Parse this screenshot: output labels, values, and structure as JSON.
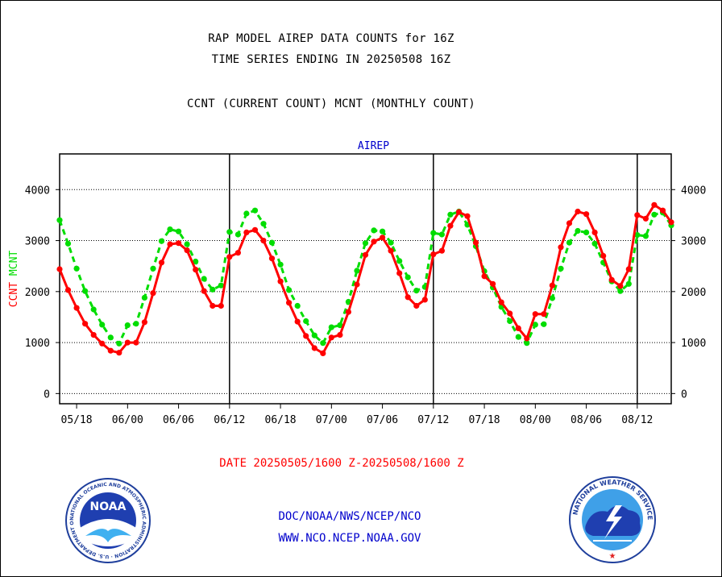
{
  "header": {
    "title_line1": "RAP MODEL AIREP DATA COUNTS for 16Z",
    "title_line2": "TIME SERIES ENDING IN 20250508 16Z",
    "title_line3": "CCNT (CURRENT COUNT) MCNT (MONTHLY COUNT)"
  },
  "footer": {
    "date_range": "DATE 20250505/1600 Z-20250508/1600 Z",
    "org": "DOC/NOAA/NWS/NCEP/NCO",
    "website": "WWW.NCO.NCEP.NOAA.GOV"
  },
  "logos": {
    "left": "NOAA",
    "left_ring": "NATIONAL OCEANIC AND ATMOSPHERIC ADMINISTRATION · U.S. DEPARTMENT OF COMMERCE",
    "right_ring": "NATIONAL WEATHER SERVICE"
  },
  "colors": {
    "ccnt": "#ff0000",
    "mcnt": "#00dd00",
    "subtitle": "#0000cc"
  },
  "chart_data": {
    "type": "line",
    "subtitle": "AIREP",
    "ylabel_parts": [
      "CCNT",
      "MCNT"
    ],
    "x_ticks": [
      {
        "hour": 2,
        "label": "05/18"
      },
      {
        "hour": 8,
        "label": "06/00"
      },
      {
        "hour": 14,
        "label": "06/06"
      },
      {
        "hour": 20,
        "label": "06/12"
      },
      {
        "hour": 26,
        "label": "06/18"
      },
      {
        "hour": 32,
        "label": "07/00"
      },
      {
        "hour": 38,
        "label": "07/06"
      },
      {
        "hour": 44,
        "label": "07/12"
      },
      {
        "hour": 50,
        "label": "07/18"
      },
      {
        "hour": 56,
        "label": "08/00"
      },
      {
        "hour": 62,
        "label": "08/06"
      },
      {
        "hour": 68,
        "label": "08/12"
      }
    ],
    "x_range_hours": [
      0,
      72
    ],
    "x_unit": "hours from 05/16Z",
    "ylim": [
      -200,
      4700
    ],
    "yticks": [
      0,
      1000,
      2000,
      3000,
      4000
    ],
    "day_boundaries_hours": [
      20,
      44,
      68
    ],
    "grid": true,
    "series": [
      {
        "name": "CCNT",
        "color": "#ff0000",
        "values": [
          2440,
          2030,
          1680,
          1370,
          1150,
          980,
          840,
          800,
          1000,
          1000,
          1400,
          1970,
          2570,
          2930,
          2950,
          2810,
          2430,
          2010,
          1720,
          1720,
          2680,
          2760,
          3160,
          3210,
          3000,
          2650,
          2200,
          1780,
          1410,
          1130,
          890,
          790,
          1100,
          1150,
          1600,
          2140,
          2720,
          2980,
          3060,
          2800,
          2360,
          1890,
          1720,
          1840,
          2730,
          2800,
          3290,
          3560,
          3480,
          2960,
          2300,
          2150,
          1790,
          1570,
          1280,
          1080,
          1560,
          1560,
          2120,
          2870,
          3340,
          3570,
          3520,
          3160,
          2700,
          2230,
          2110,
          2440,
          3500,
          3430,
          3700,
          3590,
          3360
        ]
      },
      {
        "name": "MCNT",
        "color": "#00dd00",
        "values": [
          3400,
          2940,
          2450,
          2010,
          1650,
          1350,
          1100,
          980,
          1340,
          1370,
          1880,
          2450,
          2990,
          3220,
          3180,
          2930,
          2590,
          2250,
          2040,
          2120,
          3170,
          3120,
          3530,
          3590,
          3330,
          2960,
          2530,
          2030,
          1720,
          1420,
          1140,
          990,
          1300,
          1340,
          1800,
          2410,
          2950,
          3200,
          3180,
          2960,
          2600,
          2280,
          2020,
          2090,
          3150,
          3120,
          3510,
          3570,
          3310,
          2890,
          2400,
          2080,
          1700,
          1420,
          1110,
          990,
          1350,
          1360,
          1870,
          2450,
          2960,
          3190,
          3160,
          2940,
          2570,
          2200,
          2010,
          2150,
          3110,
          3090,
          3510,
          3550,
          3300
        ]
      }
    ]
  }
}
